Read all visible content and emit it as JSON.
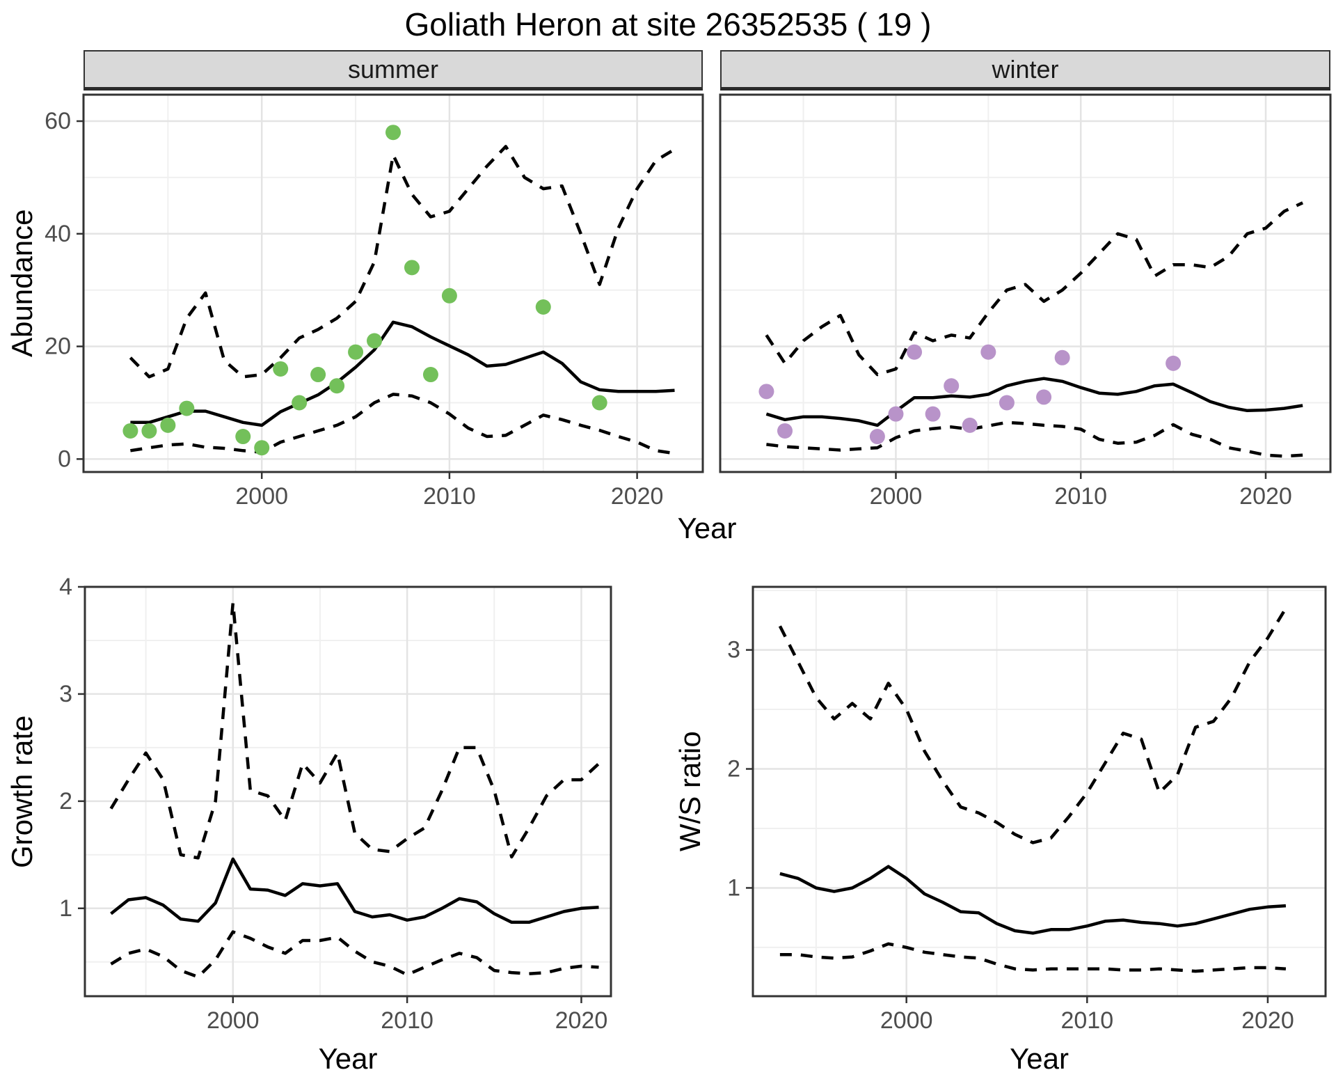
{
  "title": "Goliath Heron at site 26352535 ( 19 )",
  "chart_data": [
    {
      "type": "line",
      "id": "summer",
      "facet_label": "summer",
      "xlabel": "Year",
      "ylabel": "Abundance",
      "xlim": [
        1990.5,
        2023.5
      ],
      "ylim": [
        -2.3,
        64.7
      ],
      "xticks": [
        2000,
        2010,
        2020
      ],
      "xminor": [
        1995,
        2005,
        2015
      ],
      "yticks": [
        0,
        20,
        40,
        60
      ],
      "yminor": [
        10,
        30,
        50
      ],
      "grid": true,
      "legend": "none",
      "years": [
        1993,
        1994,
        1995,
        1996,
        1997,
        1998,
        1999,
        2000,
        2001,
        2002,
        2003,
        2004,
        2005,
        2006,
        2007,
        2008,
        2009,
        2010,
        2011,
        2012,
        2013,
        2014,
        2015,
        2016,
        2017,
        2018,
        2019,
        2020,
        2021,
        2022
      ],
      "series": [
        {
          "name": "median",
          "style": "solid",
          "values": [
            6.5,
            6.5,
            7.5,
            8.5,
            8.5,
            7.5,
            6.5,
            6,
            8.4,
            9.9,
            11.4,
            13.6,
            16.3,
            19.4,
            24.3,
            23.5,
            21.7,
            20.1,
            18.5,
            16.5,
            16.8,
            17.9,
            19,
            17,
            13.7,
            12.3,
            12,
            12,
            12,
            12.2
          ]
        },
        {
          "name": "upper_ci",
          "style": "dashed",
          "values": [
            18,
            14.6,
            16,
            25,
            29.5,
            17.5,
            14.6,
            15,
            18,
            21.5,
            23,
            25,
            28,
            35,
            54,
            47,
            43,
            44,
            48,
            52,
            55.5,
            50,
            48,
            48.5,
            40,
            31,
            41,
            48,
            53,
            55
          ]
        },
        {
          "name": "lower_ci",
          "style": "dashed",
          "values": [
            1.5,
            2,
            2.5,
            2.7,
            2.1,
            1.9,
            1.5,
            1.2,
            3,
            4,
            5,
            6,
            7.5,
            10,
            11.5,
            11.2,
            10,
            8,
            5.5,
            4,
            4.2,
            6,
            7.8,
            7,
            6,
            5.1,
            4,
            3,
            1.5,
            1
          ]
        }
      ],
      "points": {
        "name": "observed_counts",
        "color": "#73c05a",
        "x": [
          1993,
          1994,
          1995,
          1996,
          1999,
          2000,
          2001,
          2002,
          2003,
          2004,
          2005,
          2006,
          2007,
          2008,
          2009,
          2010,
          2015,
          2018
        ],
        "y": [
          5,
          5,
          6,
          9,
          4,
          2,
          16,
          10,
          15,
          13,
          19,
          21,
          58,
          34,
          15,
          29,
          27,
          10
        ]
      }
    },
    {
      "type": "line",
      "id": "winter",
      "facet_label": "winter",
      "xlabel": "Year",
      "ylabel": "Abundance",
      "xlim": [
        1990.5,
        2023.5
      ],
      "ylim": [
        -2.3,
        64.7
      ],
      "xticks": [
        2000,
        2010,
        2020
      ],
      "xminor": [
        1995,
        2005,
        2015
      ],
      "yticks": [
        0,
        20,
        40,
        60
      ],
      "yminor": [
        10,
        30,
        50
      ],
      "grid": true,
      "legend": "none",
      "years": [
        1993,
        1994,
        1995,
        1996,
        1997,
        1998,
        1999,
        2000,
        2001,
        2002,
        2003,
        2004,
        2005,
        2006,
        2007,
        2008,
        2009,
        2010,
        2011,
        2012,
        2013,
        2014,
        2015,
        2016,
        2017,
        2018,
        2019,
        2020,
        2021,
        2022
      ],
      "series": [
        {
          "name": "median",
          "style": "solid",
          "values": [
            8,
            7,
            7.5,
            7.5,
            7.2,
            6.8,
            6,
            8.5,
            10.9,
            10.9,
            11.2,
            11,
            11.5,
            13,
            13.8,
            14.3,
            13.8,
            12.7,
            11.7,
            11.5,
            12,
            13,
            13.3,
            11.8,
            10.2,
            9.2,
            8.6,
            8.7,
            9,
            9.5
          ]
        },
        {
          "name": "upper_ci",
          "style": "dashed",
          "values": [
            22,
            17,
            21,
            23.5,
            25.5,
            18.5,
            15,
            16,
            22.5,
            21,
            22,
            21.5,
            26,
            30,
            31,
            28,
            30,
            33,
            36.5,
            40,
            39,
            32.5,
            34.5,
            34.5,
            34,
            36,
            40,
            41,
            44,
            45.5
          ]
        },
        {
          "name": "lower_ci",
          "style": "dashed",
          "values": [
            2.6,
            2.2,
            2,
            1.8,
            1.6,
            1.8,
            2,
            3.8,
            5,
            5.4,
            5.7,
            5.3,
            5.9,
            6.5,
            6.3,
            6,
            5.8,
            5.3,
            3.5,
            2.8,
            3,
            4.2,
            6.1,
            4.4,
            3.5,
            2,
            1.4,
            0.7,
            0.5,
            0.7
          ]
        }
      ],
      "points": {
        "name": "observed_counts",
        "color": "#b893c9",
        "x": [
          1993,
          1994,
          1999,
          2000,
          2001,
          2002,
          2003,
          2004,
          2005,
          2006,
          2008,
          2009,
          2015
        ],
        "y": [
          12,
          5,
          4,
          8,
          19,
          8,
          13,
          6,
          19,
          10,
          11,
          18,
          17
        ]
      }
    },
    {
      "type": "line",
      "id": "growth",
      "facet_label": "",
      "xlabel": "Year",
      "ylabel": "Growth rate",
      "xlim": [
        1991.5,
        2021.7
      ],
      "ylim": [
        0.18,
        4.0
      ],
      "xticks": [
        2000,
        2010,
        2020
      ],
      "xminor": [
        1995,
        2005,
        2015
      ],
      "yticks": [
        1,
        2,
        3,
        4
      ],
      "yminor": [
        0.5,
        1.5,
        2.5,
        3.5
      ],
      "grid": true,
      "legend": "none",
      "years": [
        1993,
        1994,
        1995,
        1996,
        1997,
        1998,
        1999,
        2000,
        2001,
        2002,
        2003,
        2004,
        2005,
        2006,
        2007,
        2008,
        2009,
        2010,
        2011,
        2012,
        2013,
        2014,
        2015,
        2016,
        2017,
        2018,
        2019,
        2020,
        2021
      ],
      "series": [
        {
          "name": "median",
          "style": "solid",
          "values": [
            0.95,
            1.08,
            1.1,
            1.03,
            0.9,
            0.88,
            1.05,
            1.46,
            1.18,
            1.17,
            1.12,
            1.23,
            1.21,
            1.23,
            0.97,
            0.92,
            0.94,
            0.89,
            0.92,
            1.0,
            1.09,
            1.06,
            0.95,
            0.87,
            0.87,
            0.92,
            0.97,
            1.0,
            1.01
          ]
        },
        {
          "name": "upper_ci",
          "style": "dashed",
          "values": [
            1.93,
            2.2,
            2.45,
            2.2,
            1.5,
            1.47,
            2.0,
            3.85,
            2.1,
            2.05,
            1.82,
            2.35,
            2.17,
            2.45,
            1.7,
            1.55,
            1.53,
            1.65,
            1.75,
            2.1,
            2.5,
            2.5,
            2.1,
            1.48,
            1.75,
            2.05,
            2.2,
            2.2,
            2.35
          ]
        },
        {
          "name": "lower_ci",
          "style": "dashed",
          "values": [
            0.48,
            0.58,
            0.62,
            0.55,
            0.42,
            0.36,
            0.52,
            0.78,
            0.72,
            0.64,
            0.58,
            0.7,
            0.7,
            0.73,
            0.6,
            0.5,
            0.46,
            0.38,
            0.45,
            0.52,
            0.58,
            0.54,
            0.42,
            0.4,
            0.39,
            0.4,
            0.44,
            0.46,
            0.45
          ]
        }
      ],
      "points": null
    },
    {
      "type": "line",
      "id": "ratio",
      "facet_label": "",
      "xlabel": "Year",
      "ylabel": "W/S ratio",
      "xlim": [
        1991.5,
        2023.2
      ],
      "ylim": [
        0.09,
        3.53
      ],
      "xticks": [
        2000,
        2010,
        2020
      ],
      "xminor": [
        1995,
        2005,
        2015
      ],
      "yticks": [
        1,
        2,
        3
      ],
      "yminor": [
        0.5,
        1.5,
        2.5,
        3.5
      ],
      "grid": true,
      "legend": "none",
      "years": [
        1993,
        1994,
        1995,
        1996,
        1997,
        1998,
        1999,
        2000,
        2001,
        2002,
        2003,
        2004,
        2005,
        2006,
        2007,
        2008,
        2009,
        2010,
        2011,
        2012,
        2013,
        2014,
        2015,
        2016,
        2017,
        2018,
        2019,
        2020,
        2021
      ],
      "series": [
        {
          "name": "median",
          "style": "solid",
          "values": [
            1.12,
            1.08,
            1.0,
            0.97,
            1.0,
            1.08,
            1.18,
            1.08,
            0.95,
            0.88,
            0.8,
            0.79,
            0.7,
            0.64,
            0.62,
            0.65,
            0.65,
            0.68,
            0.72,
            0.73,
            0.71,
            0.7,
            0.68,
            0.7,
            0.74,
            0.78,
            0.82,
            0.84,
            0.85
          ]
        },
        {
          "name": "upper_ci",
          "style": "dashed",
          "values": [
            3.2,
            2.9,
            2.6,
            2.42,
            2.55,
            2.42,
            2.72,
            2.5,
            2.15,
            1.9,
            1.68,
            1.63,
            1.55,
            1.45,
            1.38,
            1.42,
            1.6,
            1.8,
            2.05,
            2.3,
            2.25,
            1.8,
            1.95,
            2.35,
            2.4,
            2.6,
            2.9,
            3.1,
            3.35
          ]
        },
        {
          "name": "lower_ci",
          "style": "dashed",
          "values": [
            0.44,
            0.44,
            0.42,
            0.41,
            0.42,
            0.47,
            0.53,
            0.5,
            0.46,
            0.44,
            0.42,
            0.41,
            0.36,
            0.32,
            0.31,
            0.32,
            0.32,
            0.32,
            0.32,
            0.31,
            0.31,
            0.32,
            0.31,
            0.3,
            0.31,
            0.32,
            0.33,
            0.33,
            0.32
          ]
        }
      ],
      "points": null
    }
  ],
  "style": {
    "line_color": "#000000",
    "panel_border_color": "#333333",
    "strip_fill": "#d9d9d9",
    "grid_major_color": "#e4e4e4",
    "grid_minor_color": "#f0f0f0",
    "tick_text_color": "#4d4d4d",
    "summer_point_color": "#73c05a",
    "winter_point_color": "#b893c9"
  }
}
